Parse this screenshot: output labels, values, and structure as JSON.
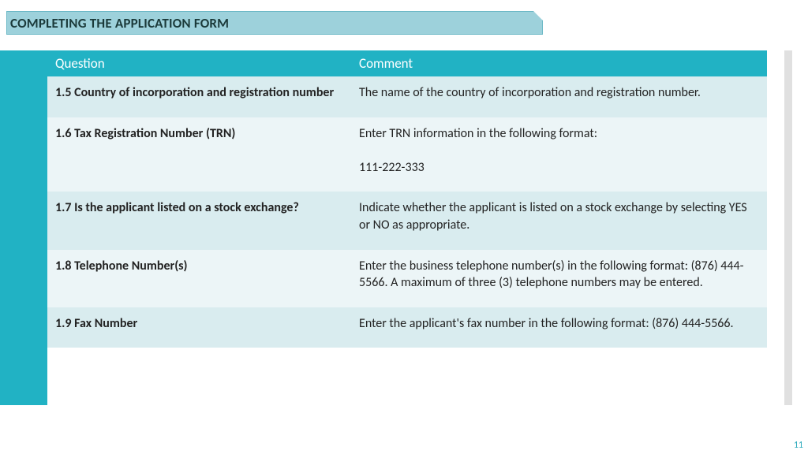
{
  "title": "COMPLETING THE APPLICATION FORM",
  "columns": {
    "q": "Question",
    "c": "Comment"
  },
  "rows": [
    {
      "q": "1.5   Country of incorporation and registration number",
      "c": "The name of the country of incorporation and registration number."
    },
    {
      "q": "1.6   Tax Registration Number (TRN)",
      "c": "Enter TRN information in the following format:\n\n 111-222-333"
    },
    {
      "q": "1.7   Is the applicant listed on a stock exchange?",
      "c": "Indicate whether the applicant is listed on a stock exchange by selecting YES or NO as appropriate."
    },
    {
      "q": "1.8   Telephone Number(s)",
      "c": "Enter the business telephone number(s) in the following format: (876) 444-5566. A maximum of three (3) telephone numbers may be entered."
    },
    {
      "q": "1.9    Fax Number",
      "c": "Enter the applicant's fax number in the following format: (876) 444-5566."
    }
  ],
  "page_number": "11",
  "colors": {
    "accent": "#21b2c4",
    "title_bg": "#9dd1db",
    "row_odd": "#d9ecef",
    "row_even": "#ecf5f7"
  }
}
